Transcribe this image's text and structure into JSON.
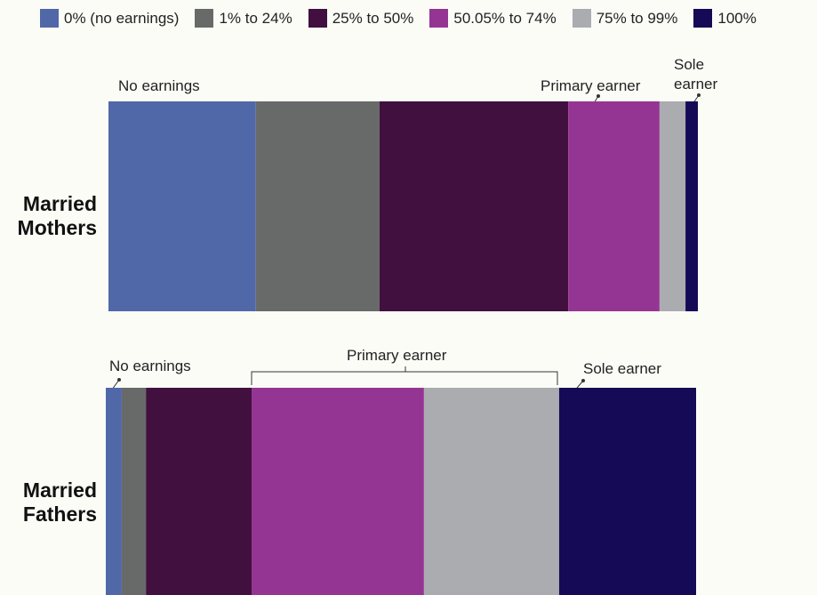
{
  "chart_data": {
    "type": "bar",
    "orientation": "horizontal",
    "stacked": true,
    "categories": [
      "Married Mothers",
      "Married Fathers"
    ],
    "series": [
      {
        "name": "0% (no earnings)",
        "color": "#5068a8",
        "values": [
          25,
          2.7
        ]
      },
      {
        "name": "1% to 24%",
        "color": "#686a6a",
        "values": [
          21,
          4.1
        ]
      },
      {
        "name": "25% to 50%",
        "color": "#41103f",
        "values": [
          32,
          17.9
        ]
      },
      {
        "name": "50.05% to 74%",
        "color": "#953593",
        "values": [
          15.5,
          29.2
        ]
      },
      {
        "name": "75% to 99%",
        "color": "#abacb0",
        "values": [
          4.4,
          22.9
        ]
      },
      {
        "name": "100%",
        "color": "#150a55",
        "values": [
          2.1,
          23.2
        ]
      }
    ],
    "annotations": [
      "No earnings",
      "Primary earner",
      "Sole earner",
      "No earnings",
      "Primary earner",
      "Sole earner"
    ]
  }
}
